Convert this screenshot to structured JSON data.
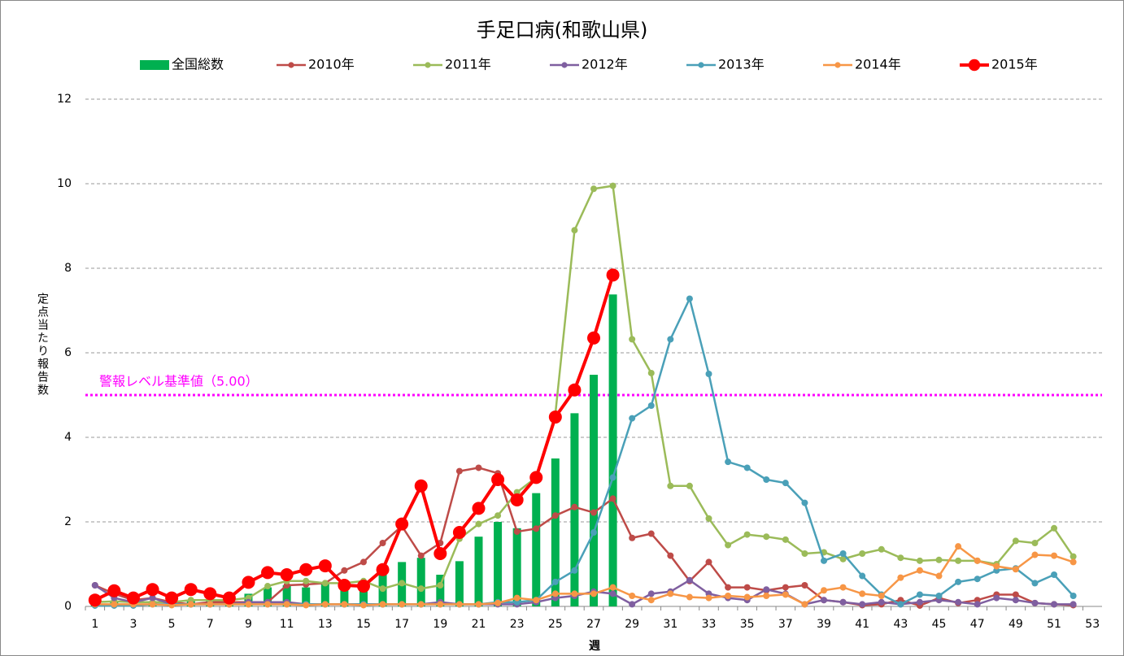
{
  "chart_data": {
    "type": "bar_line",
    "title": "手足口病(和歌山県)",
    "x_label": "週",
    "y_label": "定点当たり報告数",
    "categories": [
      1,
      null,
      3,
      null,
      5,
      null,
      7,
      null,
      9,
      null,
      11,
      null,
      13,
      null,
      15,
      null,
      17,
      null,
      19,
      null,
      21,
      null,
      23,
      null,
      25,
      null,
      27,
      null,
      29,
      null,
      31,
      null,
      33,
      null,
      35,
      null,
      37,
      null,
      39,
      null,
      41,
      null,
      43,
      null,
      45,
      null,
      47,
      null,
      49,
      null,
      51,
      null,
      53
    ],
    "ylim": [
      0,
      12
    ],
    "yticks": [
      0,
      2,
      4,
      6,
      8,
      10,
      12
    ],
    "grid": true,
    "reference_line": {
      "label": "警報レベル基準値（5.00）",
      "value": 5,
      "color": "#ff00ff"
    },
    "series": [
      {
        "name": "全国総数",
        "kind": "bar",
        "color": "#00b050",
        "values": [
          0.1,
          0.1,
          0.1,
          0.1,
          0.1,
          0.15,
          0.15,
          0.2,
          0.3,
          0.45,
          0.5,
          0.45,
          0.55,
          0.55,
          0.55,
          0.75,
          1.05,
          1.15,
          0.75,
          1.07,
          1.65,
          2.0,
          1.85,
          2.68,
          3.5,
          4.57,
          5.48,
          7.38,
          null,
          null,
          null,
          null,
          null,
          null,
          null,
          null,
          null,
          null,
          null,
          null,
          null,
          null,
          null,
          null,
          null,
          null,
          null,
          null,
          null,
          null,
          null,
          null,
          null
        ]
      },
      {
        "name": "2010年",
        "kind": "line",
        "color": "#be4b48",
        "line_width": 2.5,
        "marker_radius": 4,
        "values": [
          0.5,
          0.3,
          0.15,
          0.2,
          0.1,
          0.05,
          0.1,
          0.1,
          0.1,
          0.1,
          0.5,
          0.52,
          0.55,
          0.85,
          1.05,
          1.5,
          1.9,
          1.2,
          1.5,
          3.2,
          3.28,
          3.15,
          1.77,
          1.84,
          2.15,
          2.35,
          2.22,
          2.55,
          1.62,
          1.72,
          1.2,
          0.6,
          1.05,
          0.45,
          0.45,
          0.38,
          0.45,
          0.5,
          0.15,
          0.1,
          0.03,
          0.05,
          0.15,
          0.02,
          0.2,
          0.08,
          0.15,
          0.28,
          0.28,
          0.08,
          0.05,
          0.03,
          null
        ]
      },
      {
        "name": "2011年",
        "kind": "line",
        "color": "#9bbb59",
        "line_width": 2.5,
        "marker_radius": 4,
        "values": [
          0.1,
          0.12,
          0.1,
          0.1,
          0.1,
          0.15,
          0.15,
          0.15,
          0.2,
          0.48,
          0.6,
          0.6,
          0.55,
          0.55,
          0.6,
          0.42,
          0.55,
          0.42,
          0.5,
          1.6,
          1.95,
          2.15,
          2.7,
          3.05,
          4.55,
          8.9,
          9.88,
          9.95,
          6.32,
          5.52,
          2.85,
          2.85,
          2.08,
          1.45,
          1.7,
          1.65,
          1.58,
          1.25,
          1.28,
          1.12,
          1.25,
          1.35,
          1.15,
          1.08,
          1.1,
          1.08,
          1.08,
          1.0,
          1.55,
          1.5,
          1.85,
          1.18,
          null
        ]
      },
      {
        "name": "2012年",
        "kind": "line",
        "color": "#7f5fa0",
        "line_width": 2.5,
        "marker_radius": 4,
        "values": [
          0.5,
          0.2,
          0.1,
          0.2,
          0.05,
          0.05,
          0.05,
          0.05,
          0.1,
          0.1,
          0.1,
          0.05,
          0.05,
          0.05,
          0.05,
          0.05,
          0.05,
          0.05,
          0.1,
          0.05,
          0.05,
          0.05,
          0.05,
          0.1,
          0.2,
          0.25,
          0.35,
          0.3,
          0.05,
          0.3,
          0.35,
          0.62,
          0.3,
          0.2,
          0.15,
          0.4,
          0.3,
          0.05,
          0.15,
          0.1,
          0.05,
          0.1,
          0.05,
          0.1,
          0.15,
          0.1,
          0.05,
          0.2,
          0.15,
          0.08,
          0.05,
          0.05,
          null
        ]
      },
      {
        "name": "2013年",
        "kind": "line",
        "color": "#4aa0b8",
        "line_width": 2.5,
        "marker_radius": 4,
        "values": [
          0.02,
          0.02,
          0.02,
          0.05,
          0.05,
          0.05,
          0.05,
          0.05,
          0.05,
          0.05,
          0.05,
          0.05,
          0.05,
          0.05,
          0.05,
          0.05,
          0.05,
          0.05,
          0.05,
          0.05,
          0.05,
          0.1,
          0.1,
          0.15,
          0.58,
          0.85,
          1.75,
          3.05,
          4.45,
          4.75,
          6.32,
          7.28,
          5.5,
          3.42,
          3.28,
          3.0,
          2.92,
          2.45,
          1.08,
          1.25,
          0.72,
          0.28,
          0.05,
          0.28,
          0.25,
          0.58,
          0.65,
          0.85,
          0.9,
          0.55,
          0.75,
          0.25,
          null
        ]
      },
      {
        "name": "2014年",
        "kind": "line",
        "color": "#f79646",
        "line_width": 2.5,
        "marker_radius": 4,
        "values": [
          0.05,
          0.05,
          0.05,
          0.05,
          0.03,
          0.05,
          0.05,
          0.05,
          0.05,
          0.05,
          0.05,
          0.03,
          0.05,
          0.05,
          0.03,
          0.05,
          0.05,
          0.05,
          0.05,
          0.05,
          0.05,
          0.08,
          0.2,
          0.15,
          0.3,
          0.3,
          0.3,
          0.45,
          0.25,
          0.15,
          0.3,
          0.22,
          0.2,
          0.25,
          0.22,
          0.25,
          0.28,
          0.05,
          0.38,
          0.45,
          0.3,
          0.25,
          0.68,
          0.85,
          0.72,
          1.42,
          1.08,
          0.95,
          0.88,
          1.22,
          1.2,
          1.05,
          null
        ]
      },
      {
        "name": "2015年",
        "kind": "line",
        "color": "#ff0000",
        "line_width": 4,
        "marker_radius": 8,
        "values": [
          0.15,
          0.37,
          0.2,
          0.4,
          0.2,
          0.4,
          0.3,
          0.2,
          0.57,
          0.8,
          0.75,
          0.87,
          0.96,
          0.5,
          0.48,
          0.87,
          1.95,
          2.85,
          1.25,
          1.75,
          2.32,
          3.0,
          2.52,
          3.05,
          4.48,
          5.12,
          6.35,
          7.84,
          null,
          null,
          null,
          null,
          null,
          null,
          null,
          null,
          null,
          null,
          null,
          null,
          null,
          null,
          null,
          null,
          null,
          null,
          null,
          null,
          null,
          null,
          null,
          null,
          null
        ]
      }
    ]
  }
}
